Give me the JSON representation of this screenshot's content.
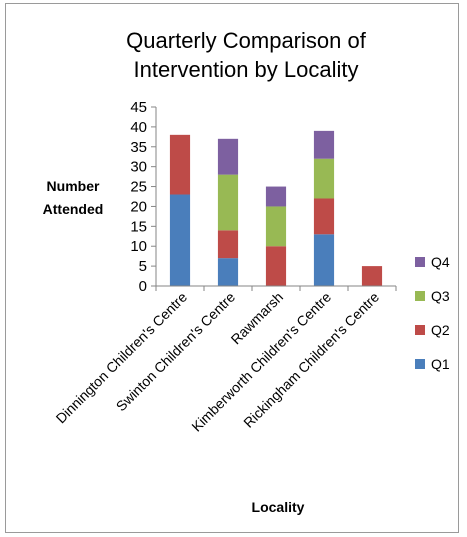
{
  "chart_data": {
    "type": "bar",
    "stacked": true,
    "title_lines": [
      "Quarterly Comparison of",
      "Intervention by Locality"
    ],
    "ylabel_lines": [
      "Number",
      "Attended"
    ],
    "xlabel": "Locality",
    "ylim": [
      0,
      45
    ],
    "yticks": [
      "0",
      "5",
      "10",
      "15",
      "20",
      "25",
      "30",
      "35",
      "40",
      "45"
    ],
    "grid": false,
    "legend_position": "right",
    "categories": [
      "Dinnington Children's Centre",
      "Swinton Children's Centre",
      "Rawmarsh",
      "Kimberworth Children's Centre",
      "Rickingham Children's Centre"
    ],
    "series": [
      {
        "name": "Q1",
        "color": "#4a7ebb",
        "values": [
          23,
          7,
          0,
          13,
          0
        ]
      },
      {
        "name": "Q2",
        "color": "#be4b48",
        "values": [
          15,
          7,
          10,
          9,
          5
        ]
      },
      {
        "name": "Q3",
        "color": "#98b954",
        "values": [
          0,
          14,
          10,
          10,
          0
        ]
      },
      {
        "name": "Q4",
        "color": "#7d60a0",
        "values": [
          0,
          9,
          5,
          7,
          0
        ]
      }
    ]
  }
}
